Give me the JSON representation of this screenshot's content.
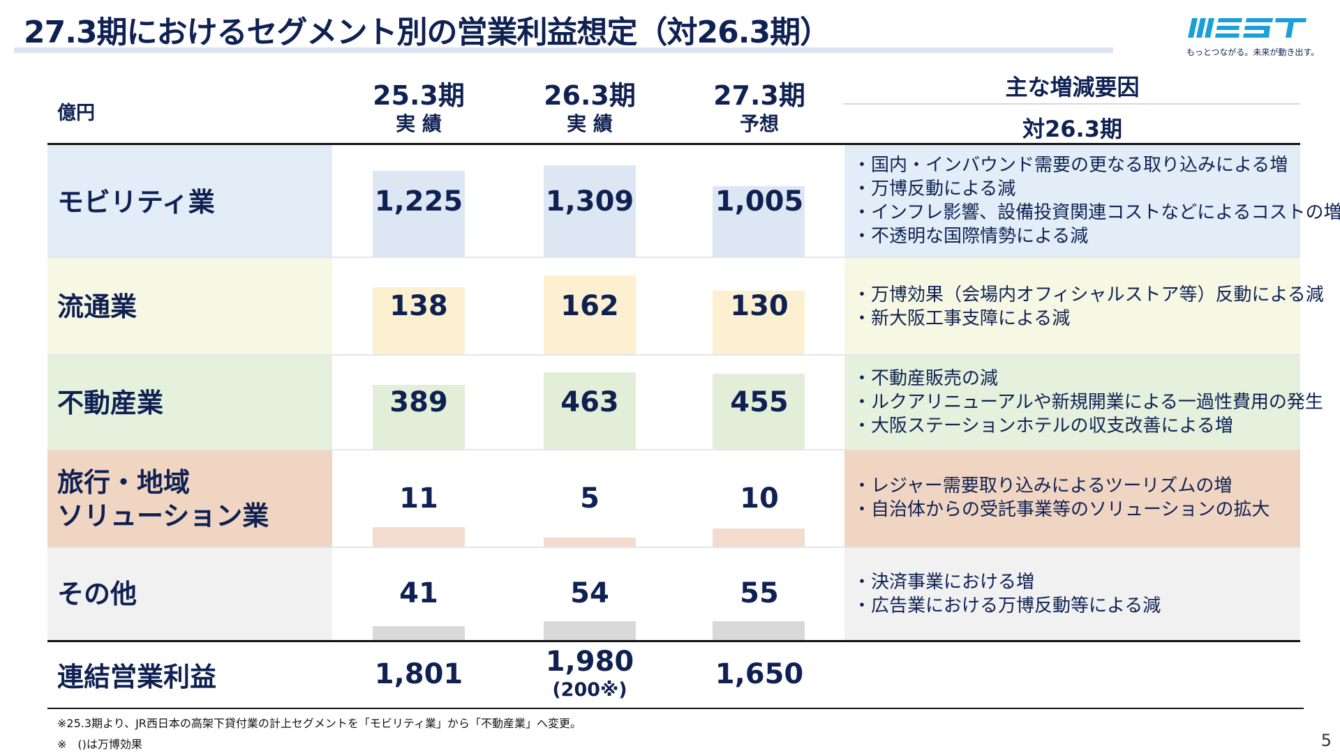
{
  "title": "27.3期におけるセグメント別の営業利益想定（対26.3期）",
  "logo": {
    "wordmark": "WEST",
    "tagline": "もっとつながる。未来が動き出す。",
    "color": "#1a9fd8"
  },
  "header": {
    "unit": "億円",
    "columns": [
      {
        "period": "25.3期",
        "type": "実 績"
      },
      {
        "period": "26.3期",
        "type": "実 績"
      },
      {
        "period": "27.3期",
        "type": "予想"
      }
    ],
    "reasons_title": "主な増減要因",
    "reasons_subtitle": "対26.3期"
  },
  "rows": [
    {
      "name_lines": [
        "モビリティ業"
      ],
      "values": [
        "1,225",
        "1,309",
        "1,005"
      ],
      "bar_levels": [
        1225,
        1309,
        1005
      ],
      "band_color": "#e3edf8",
      "bar_color": "#dde7f4",
      "reasons": [
        "・国内・インバウンド需要の更なる取り込みによる増",
        "・万博反動による減",
        "・インフレ影響、設備投資関連コストなどによるコストの増",
        "・不透明な国際情勢による減"
      ]
    },
    {
      "name_lines": [
        "流通業"
      ],
      "values": [
        "138",
        "162",
        "130"
      ],
      "bar_levels": [
        138,
        162,
        130
      ],
      "band_color": "#f7f8e4",
      "bar_color": "#fdf0d0",
      "reasons": [
        "・万博効果（会場内オフィシャルストア等）反動による減",
        "・新大阪工事支障による減"
      ]
    },
    {
      "name_lines": [
        "不動産業"
      ],
      "values": [
        "389",
        "463",
        "455"
      ],
      "bar_levels": [
        389,
        463,
        455
      ],
      "band_color": "#e5f1dc",
      "bar_color": "#e3eed9",
      "reasons": [
        "・不動産販売の減",
        "・ルクアリニューアルや新規開業による一過性費用の発生",
        "・大阪ステーションホテルの収支改善による増"
      ]
    },
    {
      "name_lines": [
        "旅行・地域",
        "ソリューション業"
      ],
      "values": [
        "11",
        "5",
        "10"
      ],
      "bar_levels": [
        11,
        5,
        10
      ],
      "band_color": "#f0d5c3",
      "bar_color": "#f3dccd",
      "reasons": [
        "・レジャー需要取り込みによるツーリズムの増",
        "・自治体からの受託事業等のソリューションの拡大"
      ]
    },
    {
      "name_lines": [
        "その他"
      ],
      "values": [
        "41",
        "54",
        "55"
      ],
      "bar_levels": [
        41,
        54,
        55
      ],
      "band_color": "#f1f1f2",
      "bar_color": "#d9d9d9",
      "reasons": [
        "・決済事業における増",
        "・広告業における万博反動等による減"
      ]
    }
  ],
  "total": {
    "label": "連結営業利益",
    "values": [
      "1,801",
      "1,980",
      "1,650"
    ],
    "note_26": "(200※)"
  },
  "footnotes": [
    "※25.3期より、JR西日本の高架下貸付業の計上セグメントを「モビリティ業」から「不動産業」へ変更。",
    "※　()は万博効果"
  ],
  "page_number": "5"
}
